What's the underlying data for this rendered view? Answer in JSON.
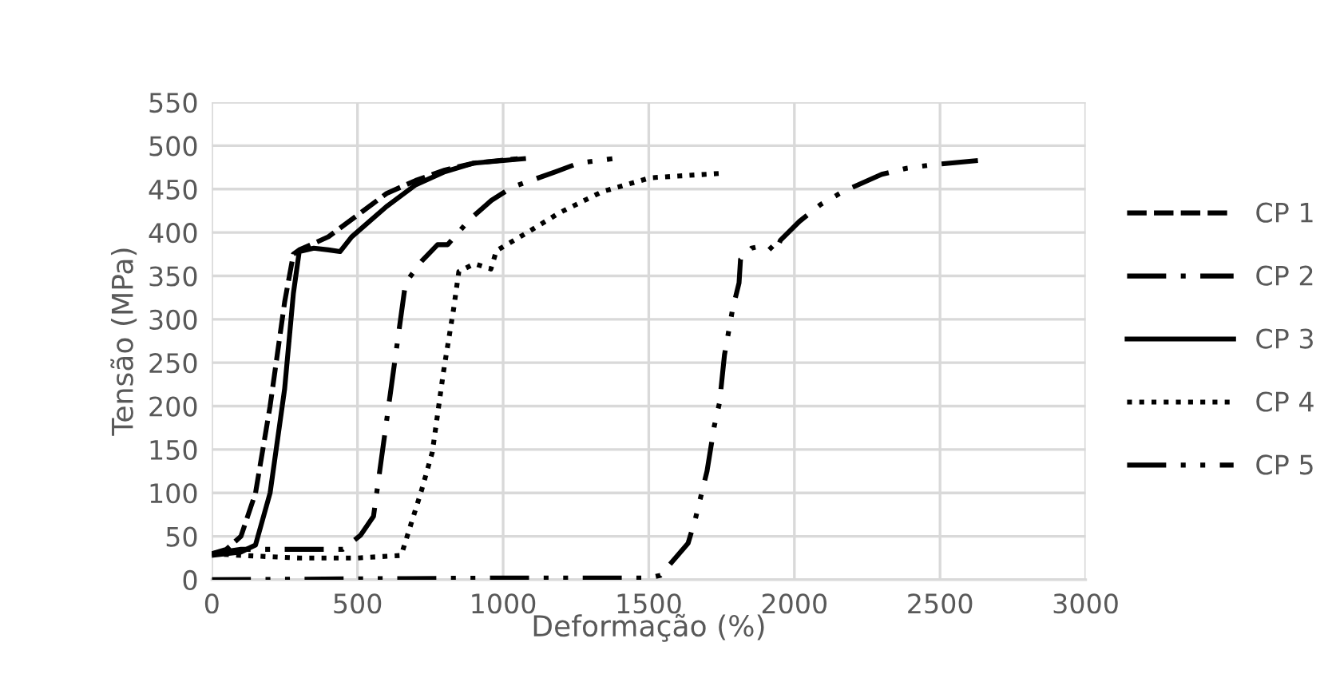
{
  "chart_data": {
    "type": "line",
    "xlabel": "Deformação (%)",
    "ylabel": "Tensão (MPa)",
    "xlim": [
      0,
      3000
    ],
    "xticks": [
      0,
      500,
      1000,
      1500,
      2000,
      2500,
      3000
    ],
    "ylim": [
      0,
      550
    ],
    "yticks": [
      0,
      50,
      100,
      150,
      200,
      250,
      300,
      350,
      400,
      450,
      500,
      550
    ],
    "grid": true,
    "legend": "right",
    "marker": "none",
    "series": [
      {
        "name": "CP 1",
        "color": "#000000",
        "line_style": "dashed",
        "x": [
          0,
          50,
          100,
          150,
          200,
          250,
          280,
          300,
          400,
          500,
          600,
          700,
          800,
          900,
          1050
        ],
        "values": [
          30,
          35,
          50,
          100,
          200,
          320,
          375,
          380,
          395,
          420,
          445,
          460,
          472,
          480,
          485
        ]
      },
      {
        "name": "CP 2",
        "color": "#000000",
        "line_style": "dashdot",
        "x": [
          0,
          100,
          280,
          450,
          510,
          555,
          665,
          720,
          775,
          810,
          885,
          960,
          1030,
          1180,
          1260,
          1375
        ],
        "values": [
          30,
          35,
          35,
          35,
          51,
          73,
          342,
          367,
          386,
          386,
          415,
          437,
          452,
          470,
          480,
          485
        ]
      },
      {
        "name": "CP 3",
        "color": "#000000",
        "line_style": "solid",
        "x": [
          0,
          100,
          150,
          200,
          250,
          280,
          300,
          350,
          400,
          440,
          480,
          600,
          700,
          800,
          900,
          1070
        ],
        "values": [
          28,
          32,
          40,
          100,
          220,
          330,
          378,
          382,
          380,
          378,
          395,
          430,
          455,
          470,
          480,
          485
        ]
      },
      {
        "name": "CP 4",
        "color": "#000000",
        "line_style": "dotted",
        "x": [
          0,
          100,
          300,
          500,
          650,
          720,
          757,
          795,
          830,
          848,
          902,
          958,
          977,
          1068,
          1195,
          1340,
          1505,
          1740
        ],
        "values": [
          30,
          28,
          25,
          25,
          28,
          103,
          147,
          239,
          312,
          355,
          364,
          358,
          379,
          397,
          423,
          447,
          463,
          468
        ]
      },
      {
        "name": "CP 5",
        "color": "#000000",
        "line_style": "dashdotdot",
        "x": [
          0,
          500,
          1000,
          1500,
          1540,
          1635,
          1660,
          1700,
          1725,
          1743,
          1760,
          1788,
          1810,
          1815,
          1853,
          1908,
          1935,
          1952,
          2018,
          2089,
          2166,
          2300,
          2385,
          2474,
          2630
        ],
        "values": [
          0,
          1,
          2,
          2,
          5,
          42,
          70,
          125,
          177,
          204,
          259,
          312,
          342,
          369,
          382,
          386,
          377,
          391,
          413,
          432,
          447,
          467,
          474,
          478,
          483
        ]
      }
    ]
  }
}
